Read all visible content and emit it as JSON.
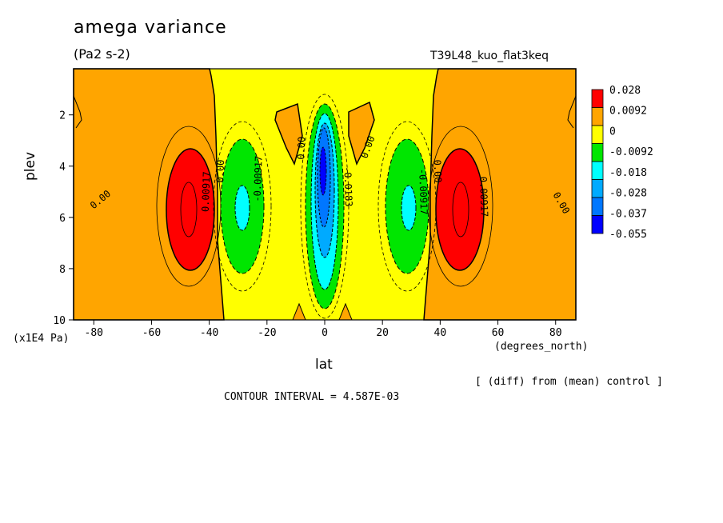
{
  "title": "amega variance",
  "units": "(Pa2 s-2)",
  "run_label": "T39L48_kuo_flat3keq",
  "diff_note": "[ (diff) from (mean) control ]",
  "contour_interval": "CONTOUR INTERVAL = 4.587E-03",
  "chart_data": {
    "type": "heatmap",
    "xlabel": "lat",
    "ylabel": "plev",
    "x_unit": "(degrees_north)",
    "y_unit": "(x1E4 Pa)",
    "xlim": [
      -87,
      87
    ],
    "ylim": [
      10,
      0.2
    ],
    "x_ticks": [
      -80,
      -60,
      -40,
      -20,
      0,
      20,
      40,
      60,
      80
    ],
    "y_ticks": [
      2,
      4,
      6,
      8,
      10
    ],
    "legend": {
      "placement": "right",
      "levels": [
        "0.028",
        "0.0092",
        "0",
        "-0.0092",
        "-0.018",
        "-0.028",
        "-0.037",
        "-0.055"
      ],
      "colors": [
        "#ff0000",
        "#ffa500",
        "#ffff00",
        "#00e600",
        "#00ffff",
        "#00aaff",
        "#0077ff",
        "#0000ff"
      ]
    },
    "contour_labels": [
      {
        "text": "0.00",
        "lat": -77,
        "plev": 5.4,
        "angle": -40
      },
      {
        "text": "0.00917",
        "lat": -40,
        "plev": 5.0,
        "angle": -88
      },
      {
        "text": "0.00",
        "lat": -35,
        "plev": 4.2,
        "angle": -88
      },
      {
        "text": "-0.00917",
        "lat": -22,
        "plev": 4.5,
        "angle": -88
      },
      {
        "text": "0.00",
        "lat": -7,
        "plev": 3.3,
        "angle": -88
      },
      {
        "text": "-0.0183",
        "lat": 7,
        "plev": 4.8,
        "angle": 88
      },
      {
        "text": "0.00",
        "lat": 16,
        "plev": 3.3,
        "angle": -70
      },
      {
        "text": "-0.00917",
        "lat": 33,
        "plev": 5.0,
        "angle": 88
      },
      {
        "text": "0.00",
        "lat": 38,
        "plev": 4.2,
        "angle": 88
      },
      {
        "text": "0.00917",
        "lat": 54,
        "plev": 5.2,
        "angle": 88
      },
      {
        "text": "0.00",
        "lat": 81,
        "plev": 5.5,
        "angle": 60
      }
    ]
  }
}
